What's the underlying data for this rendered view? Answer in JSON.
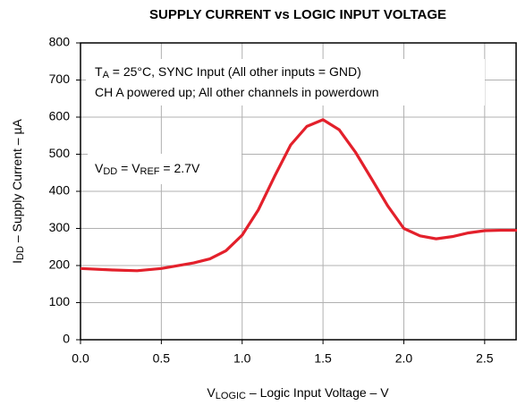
{
  "chart_data": {
    "type": "line",
    "title": "SUPPLY CURRENT vs LOGIC INPUT VOLTAGE",
    "xlabel": [
      "V",
      "LOGIC",
      " – Logic Input Voltage – V"
    ],
    "ylabel": [
      "I",
      "DD",
      " – Supply Current – µA"
    ],
    "annotations": [
      [
        [
          "T",
          "A",
          " = 25°C, SYNC Input (All other inputs = GND)"
        ],
        [
          "CH A powered up; All other channels in powerdown"
        ]
      ],
      [
        [
          "V",
          "DD",
          " = V",
          "REF",
          " = 2.7V"
        ]
      ]
    ],
    "x": [
      0,
      0.2,
      0.35,
      0.5,
      0.7,
      0.8,
      0.9,
      1.0,
      1.1,
      1.2,
      1.3,
      1.4,
      1.5,
      1.6,
      1.7,
      1.8,
      1.9,
      2.0,
      2.1,
      2.2,
      2.3,
      2.4,
      2.5,
      2.6,
      2.7
    ],
    "series": [
      {
        "color": "#e3202b",
        "values": [
          192,
          188,
          186,
          192,
          207,
          218,
          240,
          282,
          350,
          440,
          525,
          575,
          593,
          566,
          506,
          434,
          361,
          300,
          280,
          272,
          278,
          288,
          294,
          295,
          295
        ]
      }
    ],
    "xlim": [
      0,
      2.7
    ],
    "xticks": [
      {
        "value": 0,
        "label": "0.0"
      },
      0.5,
      {
        "value": 1,
        "label": "1.0"
      },
      1.5,
      {
        "value": 2,
        "label": "2.0"
      },
      2.5
    ],
    "ylim": [
      0,
      800
    ],
    "yticks": [
      0,
      100,
      200,
      300,
      400,
      500,
      600,
      700,
      800
    ],
    "grid": true
  }
}
